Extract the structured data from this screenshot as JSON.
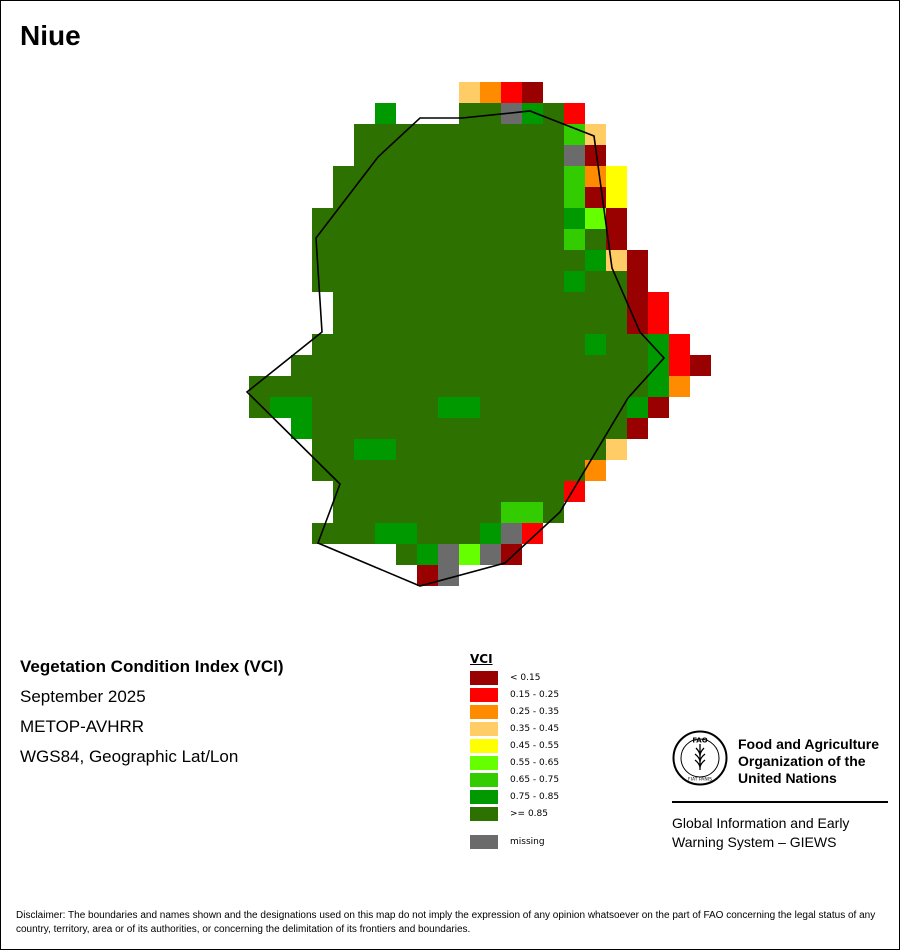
{
  "title": "Niue",
  "info": {
    "index_name": "Vegetation Condition Index (VCI)",
    "date": "September 2025",
    "sensor": "METOP-AVHRR",
    "projection": "WGS84, Geographic Lat/Lon"
  },
  "legend": {
    "title": "VCI",
    "classes": [
      {
        "key": "a",
        "label": "< 0.15",
        "color": "#990000"
      },
      {
        "key": "b",
        "label": "0.15 - 0.25",
        "color": "#ff0000"
      },
      {
        "key": "c",
        "label": "0.25 - 0.35",
        "color": "#ff8c00"
      },
      {
        "key": "d",
        "label": "0.35 - 0.45",
        "color": "#ffcc66"
      },
      {
        "key": "e",
        "label": "0.45 - 0.55",
        "color": "#ffff00"
      },
      {
        "key": "f",
        "label": "0.55 - 0.65",
        "color": "#66ff00"
      },
      {
        "key": "g",
        "label": "0.65 - 0.75",
        "color": "#33cc00"
      },
      {
        "key": "h",
        "label": "0.75 - 0.85",
        "color": "#009900"
      },
      {
        "key": "i",
        "label": ">= 0.85",
        "color": "#2d7200"
      }
    ],
    "missing": {
      "key": "m",
      "label": "missing",
      "color": "#6b6b6b"
    }
  },
  "raster": {
    "rows": [
      "..........dcba.........",
      "......h...iimhib.......",
      ".....iiiiiiiiiigd......",
      ".....iiiiiiiiiima......",
      "....iiiiiiiiiiigce.....",
      "....iiiiiiiiiiigae.....",
      "...iiiiiiiiiiiihfa.....",
      "...iiiiiiiiiiiigia.....",
      "...iiiiiiiiiiiiihda....",
      "...iiiiiiiiiiiihiia....",
      "....iiiiiiiiiiiiiiab...",
      "....iiiiiiiiiiiiiiab...",
      "...iiiiiiiiiiiiihiihb..",
      "..iiiiiiiiiiiiiiiiihba.",
      "iiiiiiiiiiiiiiiiiiihc..",
      "ihhiiiiiihhiiiiiiiha...",
      "..hiiiiiiiiiiiiiiia....",
      "...iihhiiiiiiiiiid.....",
      "...iiiiiiiiiiiiic......",
      "....iiiiiiiiiiib.......",
      "....iiiiiiiiggi........",
      "...iiihhiiihmb.........",
      ".......ihmfma..........",
      "........am............."
    ]
  },
  "organization": {
    "emblem_text": "FAO",
    "emblem_motto": "FIAT PANIS",
    "name_line1": "Food and Agriculture",
    "name_line2": "Organization of the",
    "name_line3": "United Nations",
    "system_line1": "Global Information and Early",
    "system_line2": "Warning System – GIEWS"
  },
  "disclaimer": "Disclaimer: The boundaries and names shown and the designations used on this map do not imply the expression of any opinion whatsoever on the part of FAO concerning the legal status of any country, territory, area or of its authorities, or concerning the delimitation of its frontiers and boundaries."
}
